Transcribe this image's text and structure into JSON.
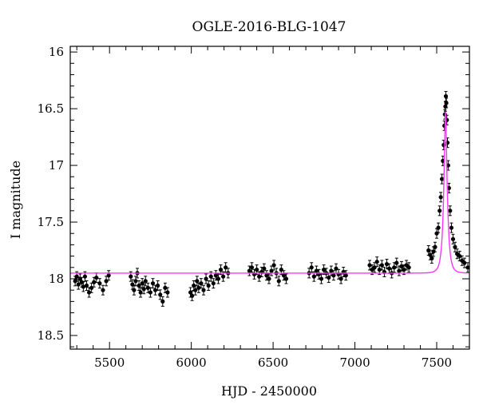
{
  "chart_data": {
    "type": "scatter",
    "title": "OGLE-2016-BLG-1047",
    "xlabel": "HJD - 2450000",
    "ylabel": "I magnitude",
    "xlim": [
      5260,
      7700
    ],
    "ylim": [
      18.62,
      15.95
    ],
    "y_axis_inverted": true,
    "xticks": [
      5500,
      6000,
      6500,
      7000,
      7500
    ],
    "yticks": [
      16,
      16.5,
      17,
      17.5,
      18,
      18.5
    ],
    "tick_labels_x": [
      "5500",
      "6000",
      "6500",
      "7000",
      "7500"
    ],
    "tick_labels_y": [
      "16",
      "16.5",
      "17",
      "17.5",
      "18",
      "18.5"
    ],
    "grid": false,
    "legend": "none",
    "colors": {
      "points": "#000000",
      "model": "#ff33ff",
      "frame": "#000000"
    },
    "model": {
      "name": "",
      "baseline": 17.95,
      "peak_time": 7554,
      "peak_mag": 16.53,
      "einstein_time": 22
    },
    "series": [
      {
        "name": "",
        "marker": "circle",
        "x": [
          5290,
          5300,
          5310,
          5320,
          5330,
          5340,
          5350,
          5360,
          5375,
          5390,
          5405,
          5420,
          5440,
          5460,
          5480,
          5495,
          5630,
          5640,
          5650,
          5660,
          5670,
          5680,
          5690,
          5700,
          5710,
          5720,
          5735,
          5750,
          5765,
          5780,
          5795,
          5810,
          5825,
          5840,
          5855,
          5995,
          6005,
          6015,
          6025,
          6035,
          6045,
          6060,
          6075,
          6090,
          6105,
          6120,
          6135,
          6150,
          6165,
          6180,
          6195,
          6210,
          6225,
          6355,
          6370,
          6385,
          6400,
          6415,
          6430,
          6445,
          6460,
          6475,
          6490,
          6505,
          6520,
          6535,
          6550,
          6565,
          6580,
          6720,
          6735,
          6750,
          6765,
          6780,
          6795,
          6810,
          6825,
          6840,
          6855,
          6870,
          6885,
          6900,
          6915,
          6930,
          6945,
          7090,
          7105,
          7120,
          7135,
          7150,
          7165,
          7180,
          7195,
          7210,
          7225,
          7240,
          7255,
          7270,
          7285,
          7300,
          7315,
          7330,
          7450,
          7460,
          7470,
          7480,
          7490,
          7500,
          7510,
          7518,
          7525,
          7532,
          7538,
          7543,
          7547,
          7550,
          7553,
          7556,
          7559,
          7562,
          7566,
          7570,
          7575,
          7582,
          7590,
          7600,
          7612,
          7625,
          7640,
          7655,
          7670,
          7690
        ],
        "y": [
          18.02,
          17.98,
          18.05,
          18.0,
          18.03,
          18.07,
          17.98,
          18.06,
          18.12,
          18.08,
          18.03,
          17.99,
          18.04,
          18.1,
          18.02,
          17.97,
          17.98,
          18.05,
          18.1,
          18.02,
          17.95,
          18.06,
          18.12,
          18.04,
          18.09,
          18.02,
          18.08,
          18.12,
          18.04,
          18.1,
          18.06,
          18.14,
          18.2,
          18.08,
          18.12,
          18.12,
          18.15,
          18.06,
          18.1,
          18.02,
          18.08,
          18.04,
          18.1,
          18.0,
          18.06,
          17.98,
          18.04,
          17.97,
          18.0,
          17.92,
          17.98,
          17.9,
          17.95,
          17.93,
          17.9,
          17.96,
          17.92,
          17.98,
          17.94,
          17.91,
          17.97,
          18.0,
          17.93,
          17.88,
          17.95,
          18.02,
          17.92,
          17.97,
          18.0,
          17.95,
          17.9,
          17.98,
          17.93,
          17.96,
          18.0,
          17.92,
          17.95,
          17.99,
          17.93,
          17.97,
          17.91,
          17.96,
          18.0,
          17.94,
          17.97,
          17.88,
          17.92,
          17.9,
          17.85,
          17.92,
          17.88,
          17.94,
          17.87,
          17.91,
          17.95,
          17.9,
          17.86,
          17.93,
          17.89,
          17.92,
          17.88,
          17.9,
          17.75,
          17.79,
          17.82,
          17.76,
          17.72,
          17.6,
          17.55,
          17.4,
          17.28,
          17.12,
          16.96,
          16.82,
          16.65,
          16.55,
          16.48,
          16.39,
          16.45,
          16.6,
          16.8,
          17.0,
          17.2,
          17.4,
          17.55,
          17.65,
          17.72,
          17.78,
          17.8,
          17.84,
          17.86,
          17.9
        ]
      }
    ]
  }
}
